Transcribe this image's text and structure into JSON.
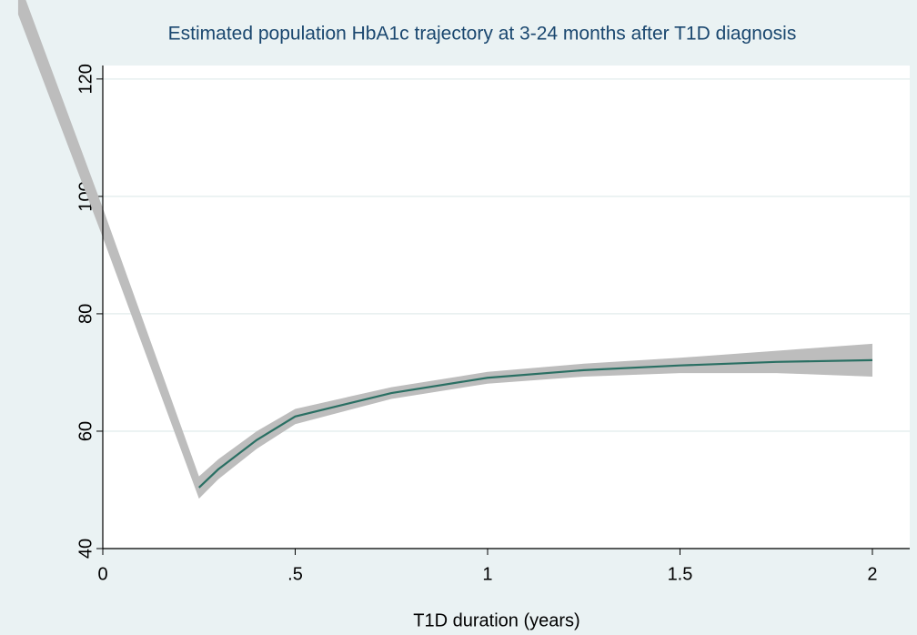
{
  "chart_data": {
    "type": "line",
    "title": "Estimated population HbA1c trajectory at 3-24 months after T1D diagnosis",
    "x_label": "T1D duration (years)",
    "x": [
      -0.22,
      0,
      0.25,
      0.3,
      0.4,
      0.5,
      0.75,
      1,
      1.25,
      1.5,
      1.75,
      2
    ],
    "band": {
      "color": "#bdbdbd",
      "lower": [
        131,
        93,
        48.5,
        51.8,
        57,
        61.2,
        65.5,
        68.1,
        69.3,
        69.9,
        69.9,
        69.3
      ],
      "upper": [
        137,
        98,
        52.3,
        55.2,
        60,
        63.8,
        67.5,
        70.1,
        71.5,
        72.5,
        73.7,
        74.9
      ]
    },
    "series": [
      {
        "color": "#2a6f63",
        "values": [
          null,
          null,
          50.4,
          53.5,
          58.5,
          62.5,
          66.5,
          69.1,
          70.4,
          71.2,
          71.8,
          72.1
        ]
      }
    ],
    "xlim": [
      0,
      2.097
    ],
    "ylim": [
      40,
      122.3
    ],
    "xticks": [
      0,
      {
        "value": 0.5,
        "label": ".5"
      },
      1,
      1.5,
      2
    ],
    "yticks": [
      40,
      60,
      80,
      100,
      120
    ],
    "grid": true
  }
}
